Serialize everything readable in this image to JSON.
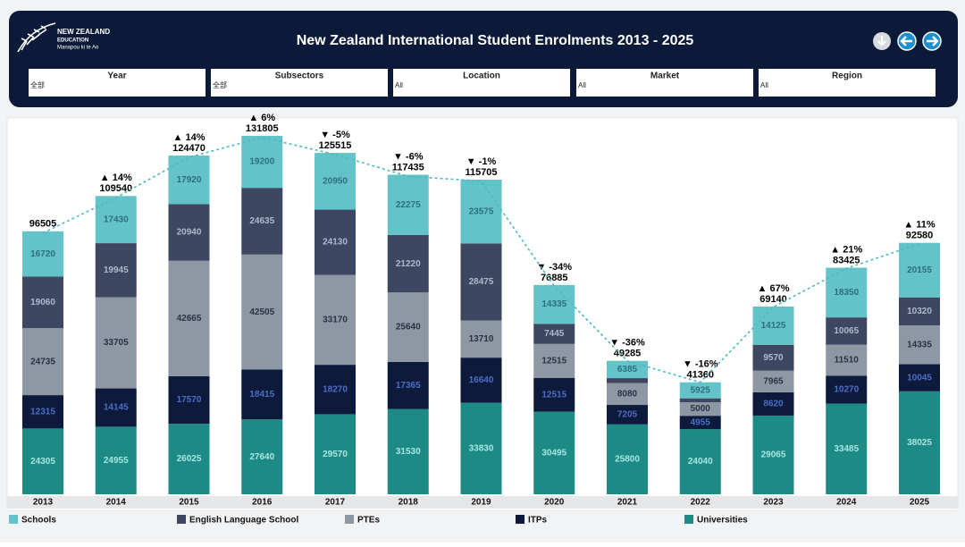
{
  "header": {
    "logo": [
      "NEW ZEALAND",
      "EDUCATION",
      "Manapou ki te Ao"
    ],
    "filters": [
      {
        "label": "Year",
        "value": "全部"
      },
      {
        "label": "Subsectors",
        "value": "全部"
      },
      {
        "label": "Location",
        "value": "All"
      },
      {
        "label": "Market",
        "value": "All"
      },
      {
        "label": "Region",
        "value": "All"
      }
    ]
  },
  "chart_data": {
    "type": "stacked_bar",
    "title": "New Zealand International Student Enrolments 2013 - 2025",
    "categories": [
      "2013",
      "2014",
      "2015",
      "2016",
      "2017",
      "2018",
      "2019",
      "2020",
      "2021",
      "2022",
      "2023",
      "2024",
      "2025"
    ],
    "series": [
      {
        "name": "Universities",
        "color": "#1e8a86",
        "label_color": "#a6e6e2",
        "values": [
          24305,
          24955,
          26025,
          27640,
          29570,
          31530,
          33830,
          30495,
          25800,
          24040,
          29065,
          33485,
          38025
        ]
      },
      {
        "name": "ITPs",
        "color": "#0e1a3c",
        "label_color": "#4a6fc4",
        "values": [
          12315,
          14145,
          17570,
          18415,
          18270,
          17365,
          16640,
          12515,
          7205,
          4955,
          8620,
          10270,
          10045
        ]
      },
      {
        "name": "PTEs",
        "color": "#8e97a4",
        "label_color": "#2a3245",
        "values": [
          24735,
          33705,
          42665,
          42505,
          33170,
          25640,
          13710,
          12515,
          8080,
          5000,
          7965,
          11510,
          14335
        ]
      },
      {
        "name": "English Language School",
        "color": "#3e4762",
        "label_color": "#b0b8cc",
        "values": [
          19060,
          19945,
          20940,
          24635,
          24130,
          21220,
          28475,
          7445,
          1815,
          1440,
          9570,
          10065,
          10320
        ]
      },
      {
        "name": "Schools",
        "color": "#63c3c9",
        "label_color": "#2c6f7a",
        "values": [
          16720,
          17430,
          17920,
          19200,
          20950,
          22275,
          23575,
          14335,
          6385,
          5925,
          14125,
          18350,
          20155
        ]
      }
    ],
    "totals": [
      96505,
      109540,
      124470,
      131805,
      125515,
      117435,
      115705,
      76885,
      49285,
      41360,
      69140,
      83425,
      92580
    ],
    "change_labels": [
      null,
      "▲ 14%",
      "▲ 14%",
      "▲ 6%",
      "▼ -5%",
      "▼ -6%",
      "▼ -1%",
      "▼ -34%",
      "▼ -36%",
      "▼ -16%",
      "▲ 67%",
      "▲ 21%",
      "▲ 11%"
    ],
    "legend": "bottom"
  }
}
